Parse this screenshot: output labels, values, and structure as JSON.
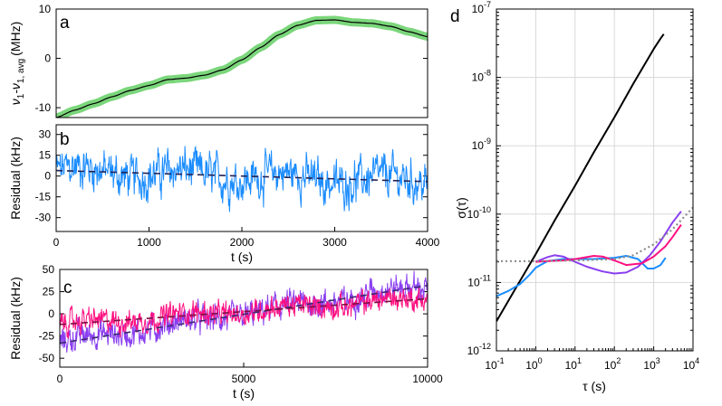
{
  "chart_data": [
    {
      "panel": "a",
      "type": "line",
      "xlabel": "",
      "ylabel": "ν1-ν1, avg (MHz)",
      "ylabel_main": "ν",
      "ylabel_sub1": "1",
      "ylabel_mid": "-ν",
      "ylabel_sub2": "1, avg",
      "ylabel_unit": "(MHz)",
      "xlim": [
        0,
        4000
      ],
      "ylim": [
        -12,
        10
      ],
      "yticks": [
        "10",
        "0",
        "-10"
      ],
      "x": [
        0,
        200,
        400,
        600,
        800,
        1000,
        1200,
        1400,
        1600,
        1800,
        2000,
        2200,
        2400,
        2600,
        2800,
        3000,
        3200,
        3400,
        3600,
        3800,
        4000
      ],
      "series": [
        {
          "name": "frequency",
          "color": "#000000",
          "band_color": "#7bd67b",
          "values": [
            -12.0,
            -10.5,
            -9.2,
            -7.8,
            -6.5,
            -5.5,
            -4.3,
            -4.0,
            -3.4,
            -2.3,
            -0.3,
            2.2,
            4.8,
            6.7,
            7.7,
            7.8,
            7.3,
            7.1,
            6.5,
            5.4,
            4.4
          ]
        }
      ]
    },
    {
      "panel": "b",
      "type": "line",
      "xlabel": "t (s)",
      "ylabel": "Residual (kHz)",
      "xlim": [
        0,
        4000
      ],
      "ylim": [
        -40,
        37
      ],
      "xticks": [
        "0",
        "1000",
        "2000",
        "3000",
        "4000"
      ],
      "yticks": [
        "30",
        "15",
        "0",
        "-15",
        "-30"
      ],
      "series": [
        {
          "name": "residual",
          "color": "#1a8cff",
          "n_points": 800,
          "trend": [
            4,
            -4
          ],
          "noise_amplitude": 14
        }
      ],
      "fit": {
        "name": "linear fit",
        "color": "#222255",
        "style": "dashed",
        "values": [
          4,
          -4
        ]
      }
    },
    {
      "panel": "c",
      "type": "line",
      "xlabel": "t (s)",
      "ylabel": "Residual (kHz)",
      "xlim": [
        0,
        10000
      ],
      "ylim": [
        -60,
        50
      ],
      "xticks": [
        "0",
        "5000",
        "10000"
      ],
      "yticks": [
        "50",
        "25",
        "0",
        "-25",
        "-50"
      ],
      "series": [
        {
          "name": "series purple",
          "color": "#8a3ff0",
          "n_points": 900,
          "trend": [
            -32,
            32
          ],
          "noise_amplitude": 14
        },
        {
          "name": "series pink",
          "color": "#ff0f80",
          "n_points": 900,
          "trend": [
            -12,
            18
          ],
          "noise_amplitude": 12
        }
      ],
      "fits": [
        {
          "name": "fit purple",
          "color": "#3a2a70",
          "style": "dashed",
          "values": [
            -33,
            32
          ]
        },
        {
          "name": "fit pink",
          "color": "#7a1040",
          "style": "dashed",
          "values": [
            -12,
            17
          ]
        }
      ]
    },
    {
      "panel": "d",
      "type": "line",
      "scale": "log-log",
      "xlabel": "τ (s)",
      "ylabel": "σ(τ)",
      "xlim": [
        0.1,
        10000
      ],
      "ylim": [
        1e-12,
        1e-07
      ],
      "xticks": [
        {
          "base": "10",
          "exp": "-1"
        },
        {
          "base": "10",
          "exp": "0"
        },
        {
          "base": "10",
          "exp": "1"
        },
        {
          "base": "10",
          "exp": "2"
        },
        {
          "base": "10",
          "exp": "3"
        },
        {
          "base": "10",
          "exp": "4"
        }
      ],
      "yticks": [
        {
          "base": "10",
          "exp": "-12"
        },
        {
          "base": "10",
          "exp": "-11"
        },
        {
          "base": "10",
          "exp": "-10"
        },
        {
          "base": "10",
          "exp": "-9"
        },
        {
          "base": "10",
          "exp": "-8"
        },
        {
          "base": "10",
          "exp": "-7"
        }
      ],
      "grid": true,
      "series": [
        {
          "name": "black",
          "color": "#000000",
          "x": [
            0.1,
            0.3,
            1,
            3,
            10,
            30,
            100,
            300,
            1000,
            1500,
            1800
          ],
          "y": [
            2.7e-12,
            8e-12,
            2.6e-11,
            8e-11,
            2.6e-10,
            8e-10,
            2.6e-09,
            8e-09,
            2.6e-08,
            3.7e-08,
            4.3e-08
          ]
        },
        {
          "name": "blue",
          "color": "#1a8cff",
          "x": [
            0.1,
            0.2,
            0.4,
            0.7,
            1,
            2,
            5,
            10,
            30,
            100,
            200,
            400,
            700,
            1000,
            1500,
            2000
          ],
          "y": [
            6.3e-12,
            7.5e-12,
            9.5e-12,
            1.3e-11,
            1.65e-11,
            2.05e-11,
            2.2e-11,
            2.2e-11,
            2.2e-11,
            2.3e-11,
            2.45e-11,
            2.2e-11,
            1.6e-11,
            1.6e-11,
            1.8e-11,
            2.3e-11
          ]
        },
        {
          "name": "purple",
          "color": "#8a3ff0",
          "x": [
            1,
            2,
            3,
            5,
            10,
            20,
            50,
            100,
            200,
            400,
            800,
            1500,
            3000,
            5000
          ],
          "y": [
            2e-11,
            2.35e-11,
            2.5e-11,
            2.4e-11,
            2e-11,
            1.7e-11,
            1.45e-11,
            1.35e-11,
            1.4e-11,
            1.7e-11,
            2.5e-11,
            4e-11,
            7.5e-11,
            1.1e-10
          ]
        },
        {
          "name": "pink",
          "color": "#ff0f80",
          "x": [
            1,
            2,
            5,
            10,
            30,
            50,
            100,
            200,
            500,
            1000,
            2000,
            3000,
            5000
          ],
          "y": [
            2e-11,
            2.05e-11,
            2.1e-11,
            2.2e-11,
            2.45e-11,
            2.4e-11,
            2.1e-11,
            1.8e-11,
            1.9e-11,
            2.4e-11,
            3.4e-11,
            4.6e-11,
            7e-11
          ]
        },
        {
          "name": "gray dotted",
          "color": "#8c8c8c",
          "style": "dotted",
          "x": [
            0.1,
            1,
            10,
            100,
            300,
            1000,
            3000,
            10000
          ],
          "y": [
            2.05e-11,
            2.05e-11,
            2.1e-11,
            2.2e-11,
            2.5e-11,
            3.6e-11,
            6e-11,
            1.25e-10
          ]
        }
      ]
    }
  ]
}
